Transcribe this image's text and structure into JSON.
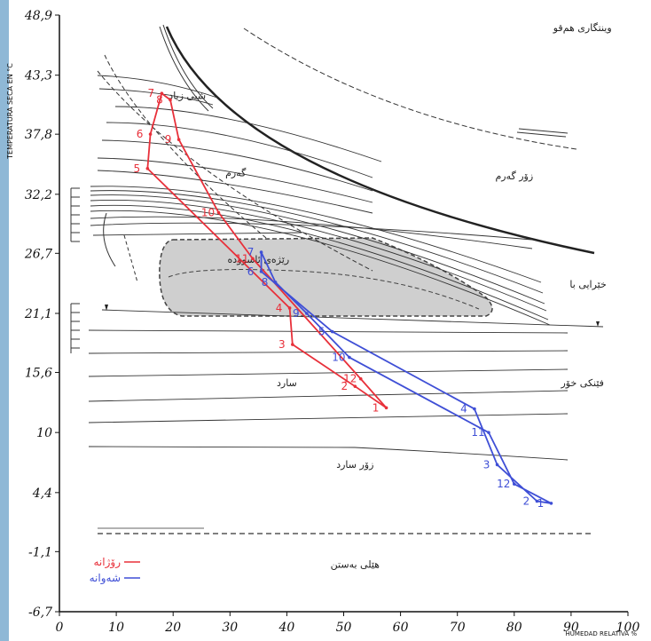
{
  "chart_data": {
    "type": "line",
    "xlabel": "HUMEDAD RELATIVA %",
    "ylabel": "TEMPERATURA SECA EN °C",
    "xlim": [
      0,
      100
    ],
    "ylim": [
      -6.7,
      48.9
    ],
    "x_ticks": [
      "0",
      "10",
      "20",
      "30",
      "40",
      "50",
      "60",
      "70",
      "80",
      "90",
      "100"
    ],
    "y_ticks": [
      {
        "label": "48,9",
        "value": 48.9
      },
      {
        "label": "43,3",
        "value": 43.3
      },
      {
        "label": "37,8",
        "value": 37.8
      },
      {
        "label": "32,2",
        "value": 32.2
      },
      {
        "label": "26,7",
        "value": 26.7
      },
      {
        "label": "21,1",
        "value": 21.1
      },
      {
        "label": "15,6",
        "value": 15.6
      },
      {
        "label": "10",
        "value": 10
      },
      {
        "label": "4,4",
        "value": 4.4
      },
      {
        "label": "-1,1",
        "value": -1.1
      },
      {
        "label": "-6,7",
        "value": -6.7
      }
    ],
    "zone_labels": [
      {
        "text": "وینتگاری هم‌قو",
        "x": 92,
        "y": 47.4
      },
      {
        "text": "شبی زیاد",
        "x": 22.5,
        "y": 41.1
      },
      {
        "text": "گەرم",
        "x": 31,
        "y": 33.9
      },
      {
        "text": "زۆر گەرم",
        "x": 80,
        "y": 33.6
      },
      {
        "text": "رێژەی ئاسوودە",
        "x": 35,
        "y": 25.8
      },
      {
        "text": "خێرایی با",
        "x": 93,
        "y": 23.5
      },
      {
        "text": "فێنکی خۆر",
        "x": 92,
        "y": 14.3
      },
      {
        "text": "سارد",
        "x": 40,
        "y": 14.3
      },
      {
        "text": "زۆر سارد",
        "x": 52,
        "y": 6.7
      },
      {
        "text": "هێلی بەستن",
        "x": 52,
        "y": -2.6
      }
    ],
    "series": [
      {
        "name": "رۆژانە",
        "color": "#e8303a",
        "points": [
          {
            "label": "1",
            "x": 57.5,
            "y": 12.3
          },
          {
            "label": "2",
            "x": 52,
            "y": 14.3
          },
          {
            "label": "3",
            "x": 41,
            "y": 18.2
          },
          {
            "label": "4",
            "x": 40.5,
            "y": 21.6
          },
          {
            "label": "5",
            "x": 15.5,
            "y": 34.6
          },
          {
            "label": "6",
            "x": 16,
            "y": 37.8
          },
          {
            "label": "7",
            "x": 18,
            "y": 41.6
          },
          {
            "label": "8",
            "x": 19.5,
            "y": 41.0
          },
          {
            "label": "9",
            "x": 21,
            "y": 37.3
          },
          {
            "label": "10",
            "x": 28,
            "y": 30.5
          },
          {
            "label": "11",
            "x": 34,
            "y": 26.2
          },
          {
            "label": "12",
            "x": 53,
            "y": 15.0
          }
        ]
      },
      {
        "name": "شەوانە",
        "color": "#3f4fd6",
        "points": [
          {
            "label": "1",
            "x": 86.5,
            "y": 3.4
          },
          {
            "label": "2",
            "x": 84,
            "y": 3.6
          },
          {
            "label": "3",
            "x": 77,
            "y": 7.0
          },
          {
            "label": "4",
            "x": 73,
            "y": 12.2
          },
          {
            "label": "5",
            "x": 48,
            "y": 19.4
          },
          {
            "label": "6",
            "x": 35.5,
            "y": 25.0
          },
          {
            "label": "7",
            "x": 35.5,
            "y": 26.8
          },
          {
            "label": "8",
            "x": 38,
            "y": 24.0
          },
          {
            "label": "9",
            "x": 43.5,
            "y": 21.1
          },
          {
            "label": "10",
            "x": 51,
            "y": 17.0
          },
          {
            "label": "11",
            "x": 75.5,
            "y": 10.0
          },
          {
            "label": "12",
            "x": 80,
            "y": 5.2
          }
        ]
      }
    ]
  }
}
